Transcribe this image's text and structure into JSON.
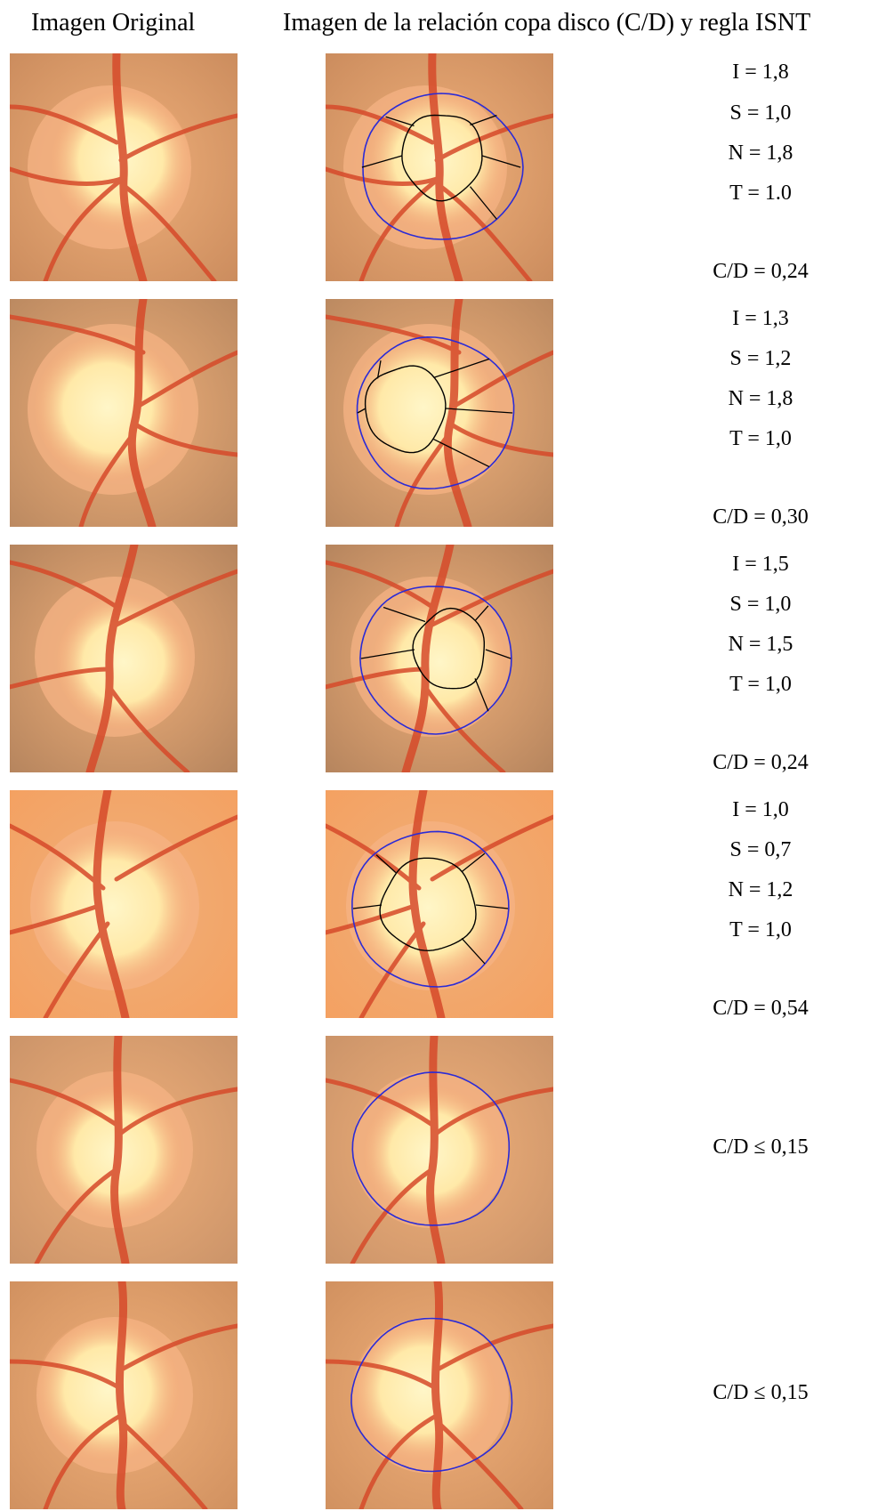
{
  "headers": {
    "original": "Imagen Original",
    "cd_isnt": "Imagen de la relación copa disco (C/D) y regla ISNT"
  },
  "rows": [
    {
      "isnt": [
        "I = 1,8",
        "S = 1,0",
        "N = 1,8",
        "T = 1.0"
      ],
      "cd": "C/D = 0,24"
    },
    {
      "isnt": [
        "I = 1,3",
        "S = 1,2",
        "N = 1,8",
        "T = 1,0"
      ],
      "cd": "C/D = 0,30"
    },
    {
      "isnt": [
        "I = 1,5",
        "S = 1,0",
        "N = 1,5",
        "T = 1,0"
      ],
      "cd": "C/D = 0,24"
    },
    {
      "isnt": [
        "I = 1,0",
        "S = 0,7",
        "N = 1,2",
        "T = 1,0"
      ],
      "cd": "C/D = 0,54"
    },
    {
      "isnt": [],
      "cd": "C/D ≤ 0,15"
    },
    {
      "isnt": [],
      "cd": "C/D ≤ 0,15"
    }
  ],
  "colors": {
    "disc_outline": "#2b2bd6",
    "cup_outline": "#000000",
    "fundus_background": "#c98a5c",
    "disc_fill": "#ffe9a8",
    "vessel": "#d64a2a"
  }
}
